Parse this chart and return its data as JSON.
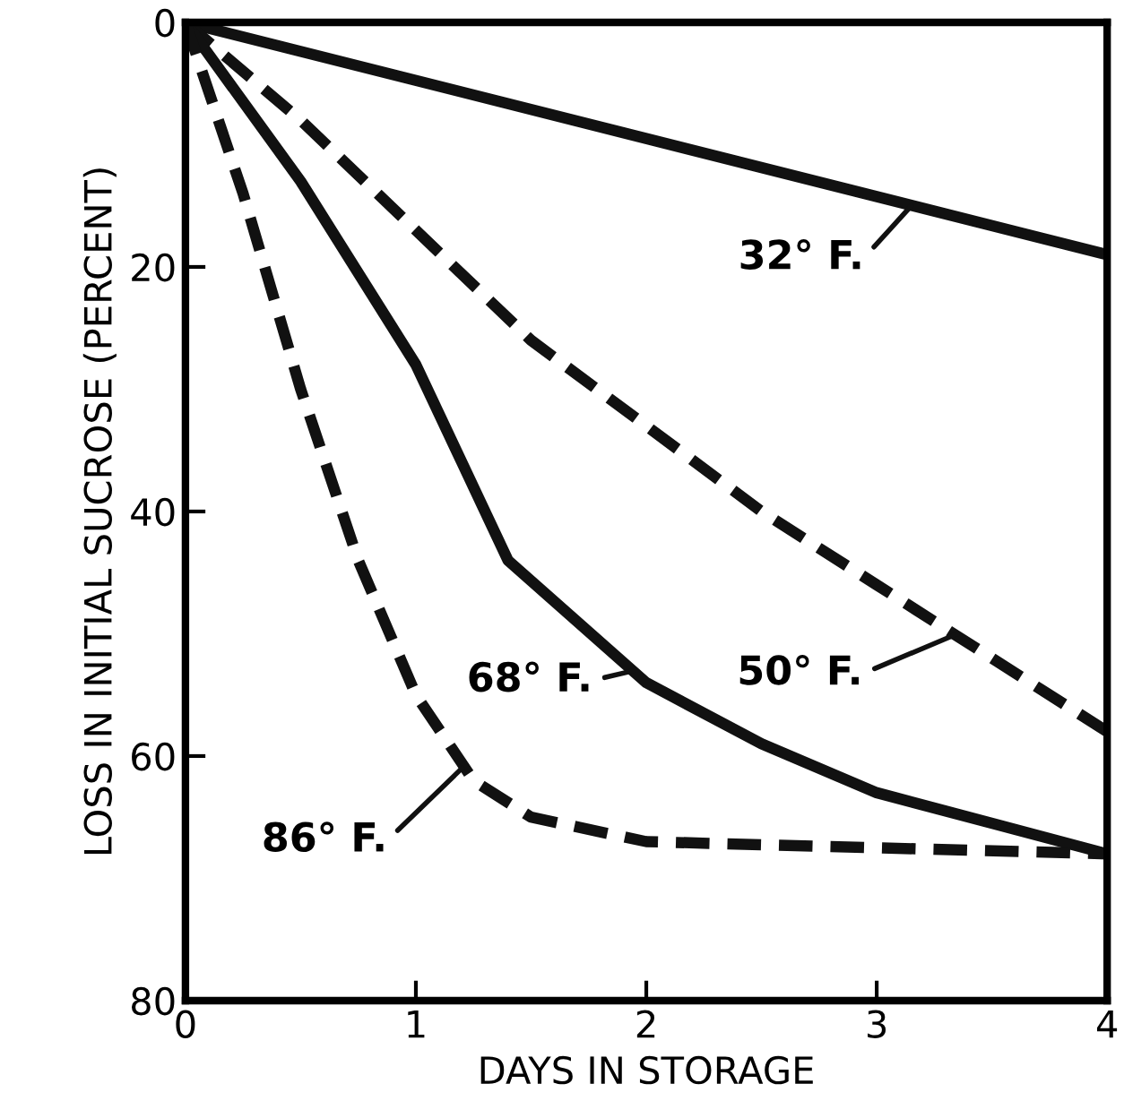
{
  "chart_data": {
    "type": "line",
    "xlabel": "DAYS IN STORAGE",
    "ylabel": "LOSS IN INITIAL SUCROSE (PERCENT)",
    "xlim": [
      0,
      4
    ],
    "ylim": [
      80,
      0
    ],
    "xticks": [
      0,
      1,
      2,
      3,
      4
    ],
    "yticks": [
      0,
      20,
      40,
      60,
      80
    ],
    "grid": false,
    "legend": false,
    "marker": "none",
    "series": [
      {
        "color": "#111111",
        "line_style": "solid",
        "x": [
          0,
          4
        ],
        "values": [
          0,
          19
        ]
      },
      {
        "color": "#111111",
        "line_style": "dashed",
        "x": [
          0,
          0.5,
          1,
          1.5,
          2,
          2.5,
          3,
          3.5,
          4
        ],
        "values": [
          0,
          8,
          17,
          26,
          33,
          40,
          46,
          52,
          58
        ]
      },
      {
        "color": "#111111",
        "line_style": "solid",
        "x": [
          0,
          0.5,
          1,
          1.4,
          2,
          2.5,
          3,
          3.5,
          4
        ],
        "values": [
          0,
          13,
          28,
          44,
          54,
          59,
          63,
          65.5,
          68
        ]
      },
      {
        "color": "#111111",
        "line_style": "dashed",
        "x": [
          0,
          0.25,
          0.5,
          0.75,
          1,
          1.25,
          1.5,
          2,
          3,
          4
        ],
        "values": [
          0,
          14,
          30,
          44,
          55,
          62,
          65,
          67,
          67.5,
          68
        ]
      }
    ],
    "annotations": [
      {
        "text": "32° F.",
        "x": 3.15,
        "y": 15
      },
      {
        "text": "50° F.",
        "x": 3.35,
        "y": 50
      },
      {
        "text": "68° F.",
        "x": 1.95,
        "y": 53
      },
      {
        "text": "86° F.",
        "x": 1.2,
        "y": 61
      }
    ]
  }
}
